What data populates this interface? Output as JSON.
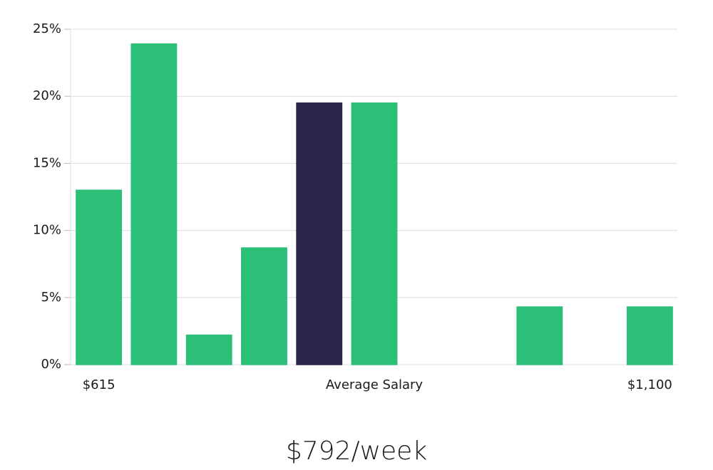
{
  "chart_data": {
    "type": "bar",
    "categories": [
      "$615",
      null,
      null,
      null,
      null,
      "Average Salary",
      null,
      null,
      null,
      null,
      "$1,100"
    ],
    "values": [
      13,
      23.9,
      2.2,
      8.7,
      19.5,
      19.5,
      0,
      0,
      4.3,
      0,
      4.3
    ],
    "colors": [
      "#2bbf78",
      "#2bbf78",
      "#2bbf78",
      "#2bbf78",
      "#29244a",
      "#2bbf78",
      "#2bbf78",
      "#2bbf78",
      "#2bbf78",
      "#2bbf78",
      "#2bbf78"
    ],
    "ylim": [
      0,
      25
    ],
    "yticks": [
      {
        "value": 0,
        "label": "0%"
      },
      {
        "value": 5,
        "label": "5%"
      },
      {
        "value": 10,
        "label": "10%"
      },
      {
        "value": 15,
        "label": "15%"
      },
      {
        "value": 20,
        "label": "20%"
      },
      {
        "value": 25,
        "label": "25%"
      }
    ],
    "grid": true,
    "annotation": "$792/week"
  }
}
